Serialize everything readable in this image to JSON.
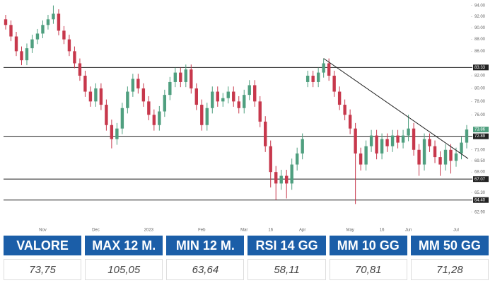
{
  "chart_data": {
    "type": "candlestick",
    "categories": [
      null,
      null,
      null,
      null,
      null,
      null,
      null,
      "Nov",
      null,
      null,
      null,
      null,
      null,
      null,
      null,
      null,
      null,
      "Dec",
      null,
      null,
      null,
      null,
      null,
      null,
      null,
      null,
      null,
      "2023",
      null,
      null,
      null,
      null,
      null,
      null,
      null,
      null,
      null,
      "Feb",
      null,
      null,
      null,
      null,
      null,
      null,
      null,
      "Mar",
      null,
      null,
      null,
      null,
      "16",
      null,
      null,
      null,
      null,
      null,
      "Apr",
      null,
      null,
      null,
      null,
      null,
      null,
      null,
      null,
      "May",
      null,
      null,
      null,
      null,
      null,
      "16",
      null,
      null,
      null,
      null,
      "Jun",
      null,
      null,
      null,
      null,
      null,
      null,
      null,
      null,
      "Jul",
      null,
      null
    ],
    "open": [
      91.5,
      90.5,
      88.5,
      86.0,
      84.5,
      86.5,
      88.0,
      89.0,
      90.5,
      91.5,
      92.5,
      89.5,
      88.0,
      86.0,
      84.0,
      82.0,
      79.5,
      78.0,
      80.0,
      77.5,
      74.5,
      72.5,
      74.0,
      77.0,
      79.5,
      81.5,
      80.0,
      78.0,
      76.0,
      74.5,
      76.5,
      79.0,
      81.0,
      82.5,
      81.0,
      83.0,
      80.0,
      77.5,
      74.5,
      77.0,
      79.5,
      78.0,
      78.5,
      79.5,
      78.0,
      77.0,
      79.0,
      80.5,
      78.0,
      75.0,
      71.5,
      68.0,
      66.5,
      67.5,
      66.5,
      69.0,
      70.5,
      81.0,
      82.0,
      81.0,
      82.5,
      84.0,
      82.0,
      79.5,
      77.5,
      76.0,
      74.0,
      70.5,
      69.0,
      71.5,
      73.0,
      70.5,
      72.5,
      71.5,
      73.0,
      72.0,
      73.0,
      74.0,
      71.0,
      69.0,
      72.5,
      71.5,
      70.0,
      69.0,
      71.0,
      69.5,
      70.5,
      72.0
    ],
    "high": [
      92.3,
      91.3,
      89.3,
      86.8,
      87.3,
      88.8,
      89.8,
      91.3,
      92.3,
      94.0,
      93.3,
      90.3,
      88.8,
      86.8,
      84.8,
      82.8,
      80.3,
      80.8,
      80.8,
      78.3,
      75.3,
      74.8,
      77.8,
      80.3,
      82.3,
      82.3,
      80.8,
      78.8,
      76.8,
      77.3,
      79.8,
      81.8,
      83.3,
      83.3,
      83.8,
      83.8,
      80.8,
      78.3,
      77.8,
      80.3,
      80.3,
      79.3,
      80.3,
      80.3,
      78.8,
      79.8,
      81.3,
      81.3,
      78.8,
      75.8,
      72.3,
      68.8,
      68.3,
      68.3,
      69.8,
      71.3,
      73.3,
      82.8,
      82.8,
      83.3,
      84.8,
      84.8,
      82.8,
      80.3,
      78.3,
      76.8,
      74.8,
      71.3,
      72.3,
      73.8,
      73.8,
      73.3,
      73.3,
      73.8,
      73.8,
      73.8,
      76.0,
      74.8,
      71.8,
      73.3,
      73.3,
      72.3,
      70.8,
      71.8,
      71.8,
      71.3,
      72.8,
      74.5
    ],
    "low": [
      89.7,
      87.7,
      85.2,
      83.7,
      83.7,
      85.7,
      87.2,
      88.2,
      89.7,
      90.7,
      88.7,
      87.2,
      85.2,
      83.2,
      81.2,
      78.7,
      77.2,
      77.2,
      76.7,
      73.7,
      71.2,
      71.7,
      73.2,
      76.2,
      78.7,
      79.2,
      77.2,
      75.2,
      73.7,
      73.7,
      75.7,
      78.2,
      80.2,
      80.2,
      80.2,
      79.2,
      76.7,
      73.7,
      73.7,
      76.2,
      77.2,
      77.2,
      77.7,
      77.2,
      76.2,
      76.2,
      78.2,
      77.2,
      74.2,
      70.7,
      66.0,
      64.4,
      65.7,
      64.6,
      65.7,
      68.2,
      69.7,
      80.2,
      80.2,
      80.2,
      81.7,
      81.2,
      78.7,
      76.7,
      75.2,
      73.2,
      63.9,
      68.2,
      68.2,
      70.7,
      69.7,
      69.7,
      70.7,
      70.7,
      71.2,
      71.2,
      72.2,
      70.2,
      67.5,
      68.2,
      70.7,
      69.2,
      67.5,
      68.2,
      67.8,
      68.7,
      69.7,
      71.2
    ],
    "close": [
      90.5,
      88.5,
      86.0,
      84.5,
      86.5,
      88.0,
      89.0,
      90.5,
      91.5,
      92.5,
      89.5,
      88.0,
      86.0,
      84.0,
      82.0,
      79.5,
      78.0,
      80.0,
      77.5,
      74.5,
      72.5,
      74.0,
      77.0,
      79.5,
      81.5,
      80.0,
      78.0,
      76.0,
      74.5,
      76.5,
      79.0,
      81.0,
      82.5,
      81.0,
      83.0,
      80.0,
      77.5,
      74.5,
      77.0,
      79.5,
      78.0,
      78.5,
      79.5,
      78.0,
      77.0,
      79.0,
      80.5,
      78.0,
      75.0,
      71.5,
      68.0,
      66.5,
      67.5,
      66.5,
      69.0,
      70.5,
      72.5,
      82.0,
      81.0,
      82.5,
      84.0,
      82.0,
      79.5,
      77.5,
      76.0,
      74.0,
      70.5,
      69.0,
      71.5,
      73.0,
      70.5,
      72.5,
      71.5,
      73.0,
      72.0,
      73.0,
      74.0,
      71.0,
      69.0,
      72.5,
      71.5,
      70.0,
      69.0,
      71.0,
      69.5,
      70.5,
      72.0,
      73.86
    ],
    "up_color": "#4f9f7f",
    "down_color": "#c7384c",
    "log_scale": true,
    "ylim": [
      61.35,
      95
    ],
    "yticks": [
      {
        "value": 94,
        "label": "94.00"
      },
      {
        "value": 92,
        "label": "92.00"
      },
      {
        "value": 90,
        "label": "90.00"
      },
      {
        "value": 88,
        "label": "88.00"
      },
      {
        "value": 86,
        "label": "86.00"
      },
      {
        "value": 82,
        "label": "82.00"
      },
      {
        "value": 80,
        "label": "80.00"
      },
      {
        "value": 78,
        "label": "78.00"
      },
      {
        "value": 76,
        "label": "76.00"
      },
      {
        "value": 71,
        "label": "71.00"
      },
      {
        "value": 69.5,
        "label": "69.50"
      },
      {
        "value": 68,
        "label": "68.00"
      },
      {
        "value": 65.3,
        "label": "65.30"
      },
      {
        "value": 62.9,
        "label": "62.90"
      }
    ],
    "levels": [
      83.33,
      72.89,
      67.07,
      {
        "value": 64.4,
        "label": "64.40"
      }
    ],
    "trendline": [
      84.8,
      69.8
    ]
  },
  "table": {
    "header": [
      "VALORE",
      "MAX 12 M.",
      "MIN 12 M.",
      "RSI 14 GG",
      "MM 10 GG",
      "MM 50 GG"
    ],
    "rows": [
      [
        "73,75",
        "105,05",
        "63,64",
        "58,11",
        "70,81",
        "71,28"
      ]
    ]
  }
}
